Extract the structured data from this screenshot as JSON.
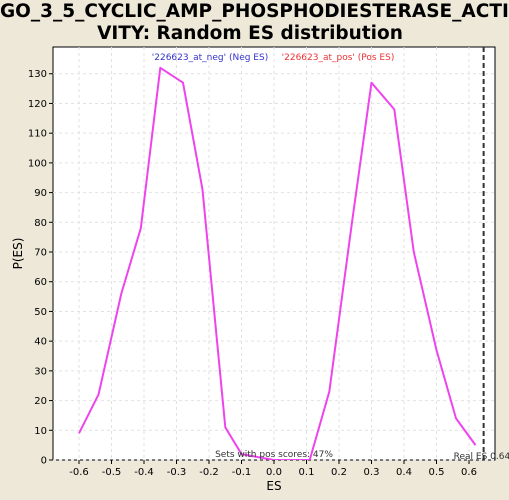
{
  "chart_data": {
    "type": "line",
    "title_line1": "GO_3_5_CYCLIC_AMP_PHOSPHODIESTERASE_ACTI",
    "title_line2": "VITY: Random ES distribution",
    "xlabel": "ES",
    "ylabel": "P(ES)",
    "xlim": [
      -0.68,
      0.68
    ],
    "ylim": [
      0,
      139
    ],
    "xticks": [
      -0.6,
      -0.5,
      -0.4,
      -0.3,
      -0.2,
      -0.1,
      0.0,
      0.1,
      0.2,
      0.3,
      0.4,
      0.5,
      0.6
    ],
    "xtick_labels": [
      "-0.6",
      "-0.5",
      "-0.4",
      "-0.3",
      "-0.2",
      "-0.1",
      "0.0",
      "0.1",
      "0.2",
      "0.3",
      "0.4",
      "0.5",
      "0.6"
    ],
    "yticks": [
      0,
      10,
      20,
      30,
      40,
      50,
      60,
      70,
      80,
      90,
      100,
      110,
      120,
      130
    ],
    "ytick_labels": [
      "0",
      "10",
      "20",
      "30",
      "40",
      "50",
      "60",
      "70",
      "80",
      "90",
      "100",
      "110",
      "120",
      "130"
    ],
    "grid": true,
    "series": [
      {
        "name": "'226623_at_neg' (Neg ES)",
        "color": "#3333cc",
        "x": [],
        "y": []
      },
      {
        "name": "'226623_at_pos' (Pos ES)",
        "color": "#ee3333",
        "x": [],
        "y": []
      },
      {
        "name": "random distribution",
        "color": "#ee44ee",
        "x": [
          -0.6,
          -0.54,
          -0.47,
          -0.41,
          -0.35,
          -0.28,
          -0.22,
          -0.15,
          -0.1,
          0.0,
          0.05,
          0.11,
          0.17,
          0.24,
          0.3,
          0.37,
          0.43,
          0.5,
          0.56,
          0.62
        ],
        "y": [
          9,
          22,
          56,
          78,
          132,
          127,
          91,
          11,
          2,
          0,
          0,
          0,
          23,
          80,
          127,
          118,
          70,
          37,
          14,
          5
        ]
      }
    ],
    "real_es": {
      "value": 0.645,
      "label": "Real ES 0.64",
      "color": "#333333"
    },
    "annotation": "Sets with pos scores: 47%"
  }
}
